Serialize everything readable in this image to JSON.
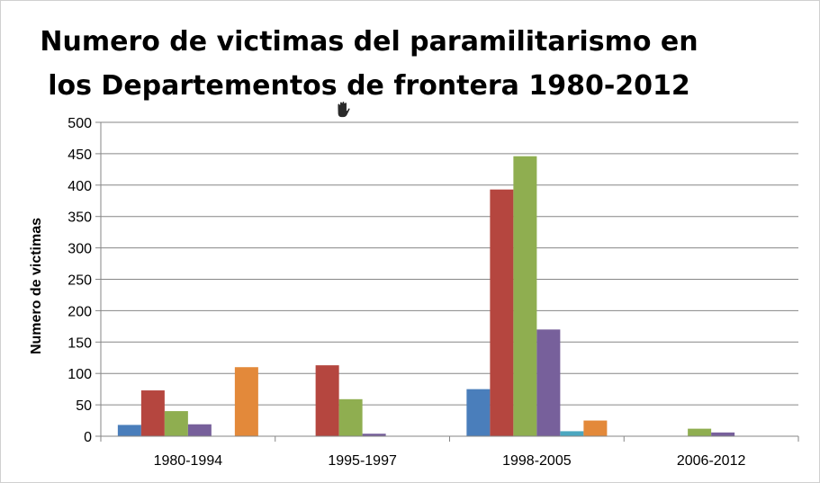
{
  "chart_data": {
    "type": "bar",
    "title_lines": [
      "Numero de victimas del paramilitarismo en",
      "los Departementos de frontera 1980-2012"
    ],
    "ylabel": "Numero de victimas",
    "xlabel": "",
    "categories": [
      "1980-1994",
      "1995-1997",
      "1998-2005",
      "2006-2012"
    ],
    "ylim": [
      0,
      500
    ],
    "yticks": [
      0,
      50,
      100,
      150,
      200,
      250,
      300,
      350,
      400,
      450,
      500
    ],
    "grid": true,
    "legend": "none",
    "series": [
      {
        "color": "#4a7ebb",
        "values": [
          18,
          0,
          75,
          0
        ]
      },
      {
        "color": "#b5463f",
        "values": [
          73,
          113,
          393,
          0
        ]
      },
      {
        "color": "#8fae50",
        "values": [
          40,
          59,
          446,
          12
        ]
      },
      {
        "color": "#77609b",
        "values": [
          19,
          4,
          170,
          6
        ]
      },
      {
        "color": "#4ba7c0",
        "values": [
          0,
          0,
          8,
          0
        ]
      },
      {
        "color": "#e3893a",
        "values": [
          110,
          0,
          25,
          0
        ]
      }
    ]
  },
  "cursor_icon": "hand-grab-icon"
}
